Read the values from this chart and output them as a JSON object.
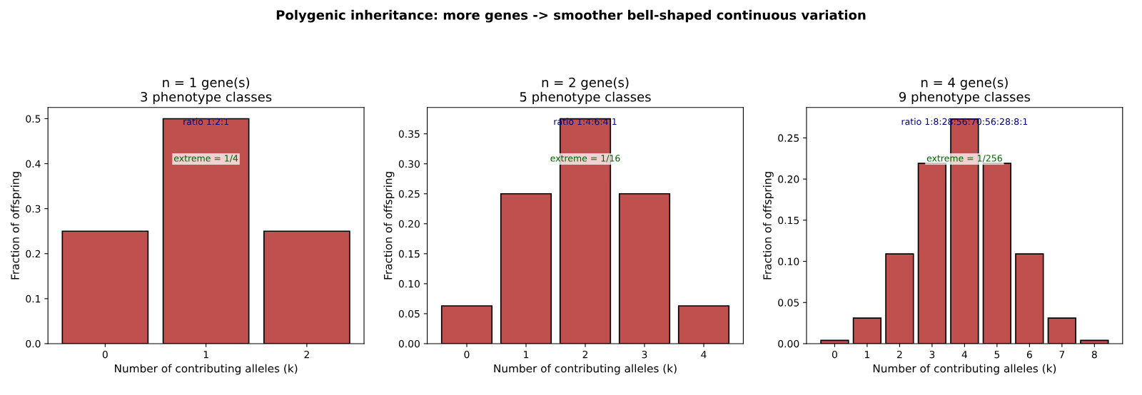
{
  "chart_data": [
    {
      "type": "bar",
      "subtitle": "Polygenic inheritance: more genes -> smoother bell-shaped continuous variation",
      "title": "n = 1 gene(s)\n3 phenotype classes",
      "xlabel": "Number of contributing alleles (k)",
      "ylabel": "Fraction of offspring",
      "categories": [
        "0",
        "1",
        "2"
      ],
      "series": [
        {
          "color": "#c0504d",
          "values": [
            0.25,
            0.5,
            0.25
          ]
        }
      ],
      "ylim": [
        0,
        0.525
      ],
      "yticks": [
        {
          "value": 0,
          "label": "0.0"
        },
        0.1,
        0.2,
        0.3,
        0.4,
        0.5
      ],
      "annotations": [
        "ratio 1:2:1",
        "extreme = 1/4"
      ],
      "grid": false,
      "legend": false
    },
    {
      "type": "bar",
      "title": "n = 2 gene(s)\n5 phenotype classes",
      "xlabel": "Number of contributing alleles (k)",
      "ylabel": "Fraction of offspring",
      "categories": [
        "0",
        "1",
        "2",
        "3",
        "4"
      ],
      "series": [
        {
          "color": "#c0504d",
          "values": [
            0.063,
            0.25,
            0.375,
            0.25,
            0.063
          ]
        }
      ],
      "ylim": [
        0,
        0.394
      ],
      "yticks": [
        {
          "value": 0,
          "label": "0.00"
        },
        {
          "value": 0.05,
          "label": "0.05"
        },
        {
          "value": 0.1,
          "label": "0.10"
        },
        {
          "value": 0.15,
          "label": "0.15"
        },
        {
          "value": 0.2,
          "label": "0.20"
        },
        {
          "value": 0.25,
          "label": "0.25"
        },
        {
          "value": 0.3,
          "label": "0.30"
        },
        {
          "value": 0.35,
          "label": "0.35"
        }
      ],
      "annotations": [
        "ratio 1:4:6:4:1",
        "extreme = 1/16"
      ],
      "grid": false,
      "legend": false
    },
    {
      "type": "bar",
      "title": "n = 4 gene(s)\n9 phenotype classes",
      "xlabel": "Number of contributing alleles (k)",
      "ylabel": "Fraction of offspring",
      "categories": [
        "0",
        "1",
        "2",
        "3",
        "4",
        "5",
        "6",
        "7",
        "8"
      ],
      "series": [
        {
          "color": "#c0504d",
          "values": [
            0.004,
            0.031,
            0.109,
            0.219,
            0.273,
            0.219,
            0.109,
            0.031,
            0.004
          ]
        }
      ],
      "ylim": [
        0,
        0.287
      ],
      "yticks": [
        {
          "value": 0,
          "label": "0.00"
        },
        {
          "value": 0.05,
          "label": "0.05"
        },
        {
          "value": 0.1,
          "label": "0.10"
        },
        {
          "value": 0.15,
          "label": "0.15"
        },
        {
          "value": 0.2,
          "label": "0.20"
        },
        {
          "value": 0.25,
          "label": "0.25"
        }
      ],
      "annotations": [
        "ratio 1:8:28:56:70:56:28:8:1",
        "extreme = 1/256"
      ],
      "grid": false,
      "legend": false
    }
  ]
}
